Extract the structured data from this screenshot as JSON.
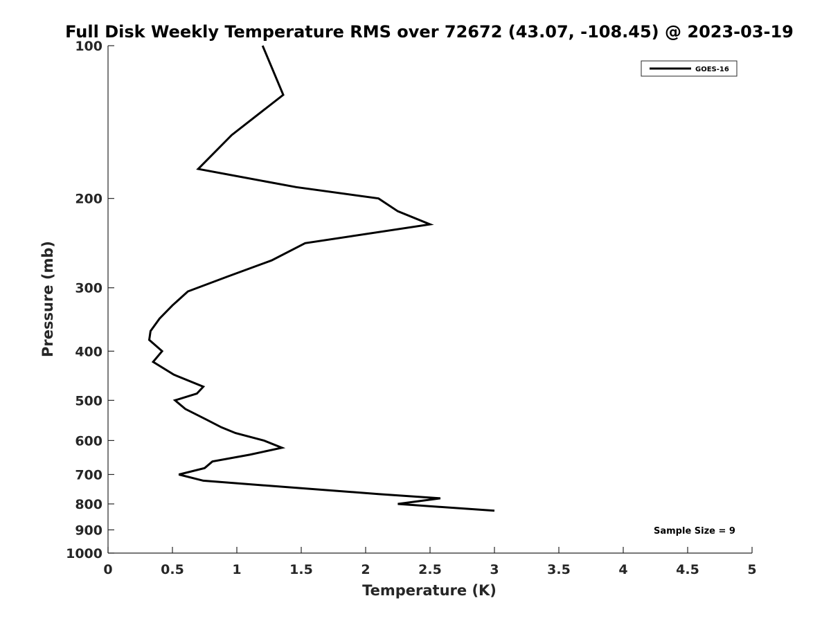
{
  "chart_data": {
    "type": "line",
    "title": "Full Disk Weekly Temperature RMS over 72672 (43.07, -108.45) @ 2023-03-19",
    "xlabel": "Temperature (K)",
    "ylabel": "Pressure (mb)",
    "xlim": [
      0,
      5
    ],
    "ylim": [
      100,
      1000
    ],
    "y_scale": "log",
    "y_reversed": true,
    "grid": false,
    "x_ticks": [
      "0",
      "0.5",
      "1",
      "1.5",
      "2",
      "2.5",
      "3",
      "3.5",
      "4",
      "4.5",
      "5"
    ],
    "y_ticks": [
      "100",
      "200",
      "300",
      "400",
      "500",
      "600",
      "700",
      "800",
      "900",
      "1000"
    ],
    "legend": {
      "placement": "top-right",
      "entries": [
        "GOES-16"
      ]
    },
    "annotation": "Sample Size = 9",
    "series": [
      {
        "name": "GOES-16",
        "color": "#000000",
        "points": [
          {
            "x": 1.2,
            "p": 100
          },
          {
            "x": 1.36,
            "p": 125
          },
          {
            "x": 0.96,
            "p": 150
          },
          {
            "x": 0.7,
            "p": 175
          },
          {
            "x": 1.46,
            "p": 190
          },
          {
            "x": 2.1,
            "p": 200
          },
          {
            "x": 2.25,
            "p": 212
          },
          {
            "x": 2.5,
            "p": 225
          },
          {
            "x": 1.53,
            "p": 245
          },
          {
            "x": 1.27,
            "p": 265
          },
          {
            "x": 0.93,
            "p": 285
          },
          {
            "x": 0.62,
            "p": 305
          },
          {
            "x": 0.5,
            "p": 325
          },
          {
            "x": 0.4,
            "p": 345
          },
          {
            "x": 0.33,
            "p": 365
          },
          {
            "x": 0.32,
            "p": 380
          },
          {
            "x": 0.42,
            "p": 400
          },
          {
            "x": 0.35,
            "p": 420
          },
          {
            "x": 0.51,
            "p": 445
          },
          {
            "x": 0.74,
            "p": 470
          },
          {
            "x": 0.69,
            "p": 485
          },
          {
            "x": 0.52,
            "p": 500
          },
          {
            "x": 0.6,
            "p": 520
          },
          {
            "x": 0.76,
            "p": 545
          },
          {
            "x": 0.88,
            "p": 565
          },
          {
            "x": 0.99,
            "p": 580
          },
          {
            "x": 1.21,
            "p": 600
          },
          {
            "x": 1.35,
            "p": 620
          },
          {
            "x": 1.1,
            "p": 640
          },
          {
            "x": 0.81,
            "p": 660
          },
          {
            "x": 0.75,
            "p": 680
          },
          {
            "x": 0.55,
            "p": 700
          },
          {
            "x": 0.74,
            "p": 720
          },
          {
            "x": 1.5,
            "p": 745
          },
          {
            "x": 2.1,
            "p": 765
          },
          {
            "x": 2.58,
            "p": 780
          },
          {
            "x": 2.25,
            "p": 800
          },
          {
            "x": 3.0,
            "p": 825
          }
        ]
      }
    ]
  }
}
